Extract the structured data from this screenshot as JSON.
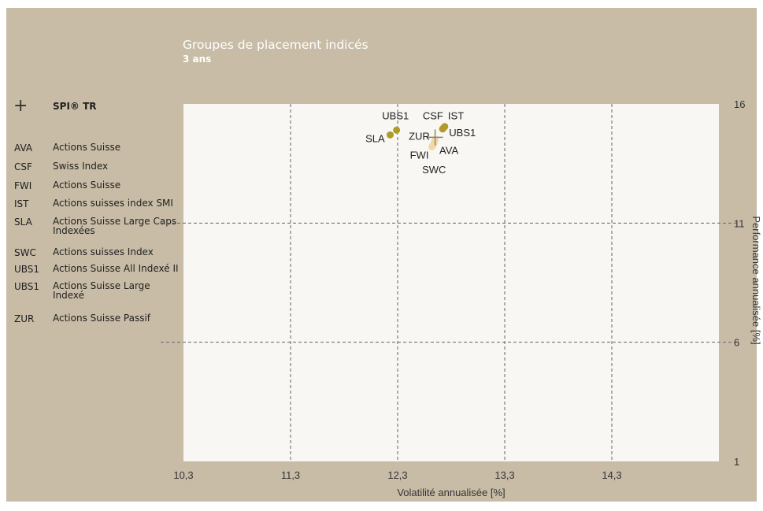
{
  "title": "Groupes de placement indicés",
  "subtitle": "3 ans",
  "benchmark": {
    "symbol": "+",
    "label": "SPI® TR"
  },
  "legend": [
    {
      "code": "AVA",
      "desc": "Actions Suisse"
    },
    {
      "code": "CSF",
      "desc": "Swiss Index"
    },
    {
      "code": "FWI",
      "desc": "Actions Suisse"
    },
    {
      "code": "IST",
      "desc": "Actions suisses index SMI"
    },
    {
      "code": "SLA",
      "desc": "Actions Suisse Large Caps Indexées"
    },
    {
      "code": "SWC",
      "desc": "Actions suisses Index"
    },
    {
      "code": "UBS1",
      "desc": "Actions Suisse All Indexé II"
    },
    {
      "code": "UBS1",
      "desc": "Actions Suisse Large Indexé"
    },
    {
      "code": "ZUR",
      "desc": "Actions Suisse Passif"
    }
  ],
  "colors": {
    "panel": "#c8bca6",
    "plot": "#f8f7f3",
    "point_dark": "#b09a2a",
    "point_light": "#efd9a8",
    "benchmark": "#8c8360"
  },
  "chart_data": {
    "type": "scatter",
    "xlabel": "Volatilité annualisée [%]",
    "ylabel": "Performance annualisée [%]",
    "xlim": [
      10.3,
      15.3
    ],
    "ylim": [
      1,
      16
    ],
    "x_ticks": [
      "10,3",
      "11,3",
      "12,3",
      "13,3",
      "14,3"
    ],
    "y_ticks": [
      "1",
      "6",
      "11",
      "16"
    ],
    "grid": true,
    "benchmark_point": {
      "label": "SPI® TR",
      "x": 12.65,
      "y": 14.6
    },
    "points": [
      {
        "label": "UBS1",
        "x": 12.29,
        "y": 14.9,
        "shade": "dark"
      },
      {
        "label": "SLA",
        "x": 12.23,
        "y": 14.7,
        "shade": "dark"
      },
      {
        "label": "CSF",
        "x": 12.73,
        "y": 15.0,
        "shade": "dark"
      },
      {
        "label": "IST",
        "x": 12.74,
        "y": 15.05,
        "shade": "dark"
      },
      {
        "label": "UBS1",
        "x": 12.72,
        "y": 14.95,
        "shade": "dark"
      },
      {
        "label": "ZUR",
        "x": 12.65,
        "y": 14.5,
        "shade": "light"
      },
      {
        "label": "AVA",
        "x": 12.64,
        "y": 14.35,
        "shade": "light"
      },
      {
        "label": "FWI",
        "x": 12.62,
        "y": 14.2,
        "shade": "light"
      },
      {
        "label": "SWC",
        "x": 12.63,
        "y": 14.25,
        "shade": "light"
      }
    ],
    "point_labels": [
      {
        "text": "UBS1",
        "x": 12.28,
        "y": 15.35,
        "anchor": "middle"
      },
      {
        "text": "CSF",
        "x": 12.63,
        "y": 15.35,
        "anchor": "middle"
      },
      {
        "text": "IST",
        "x": 12.77,
        "y": 15.35,
        "anchor": "start"
      },
      {
        "text": "SLA",
        "x": 12.18,
        "y": 14.4,
        "anchor": "end"
      },
      {
        "text": "ZUR",
        "x": 12.6,
        "y": 14.5,
        "anchor": "end"
      },
      {
        "text": "UBS1",
        "x": 12.78,
        "y": 14.65,
        "anchor": "start"
      },
      {
        "text": "FWI",
        "x": 12.59,
        "y": 13.7,
        "anchor": "end"
      },
      {
        "text": "AVA",
        "x": 12.69,
        "y": 13.9,
        "anchor": "start"
      },
      {
        "text": "SWC",
        "x": 12.64,
        "y": 13.1,
        "anchor": "middle"
      }
    ]
  }
}
